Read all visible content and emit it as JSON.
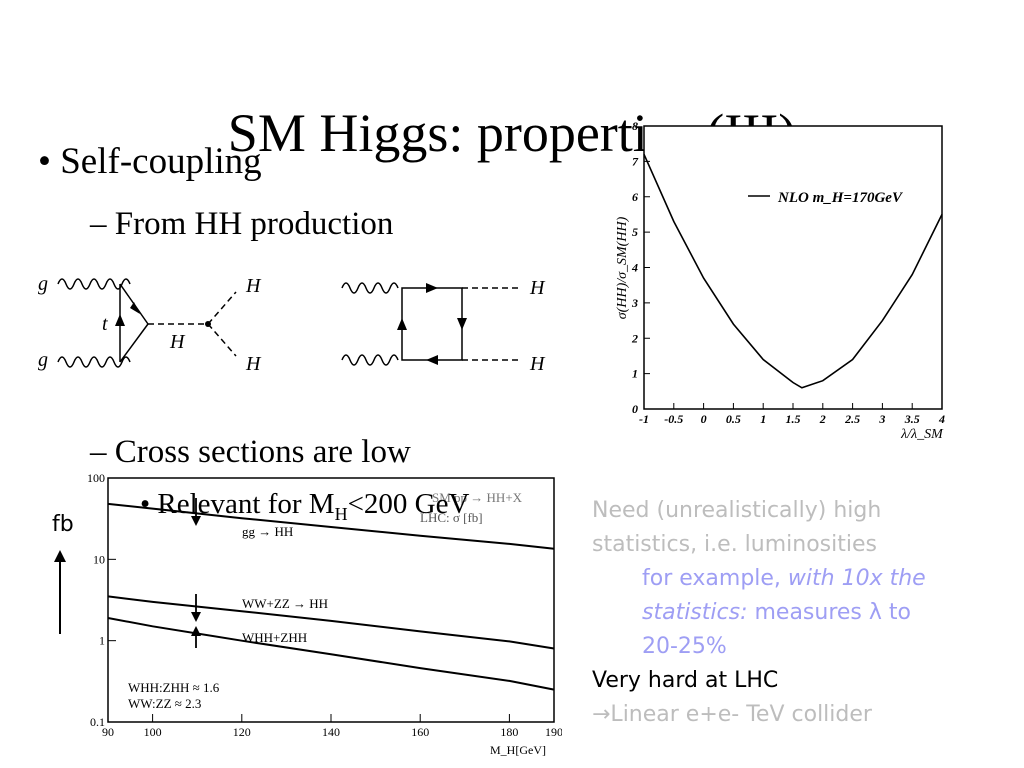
{
  "slide": {
    "title": "SM Higgs: properties (III)",
    "bullet1": "Self-coupling",
    "bullet2": "– From HH production",
    "bullet3": "– Cross sections are low",
    "bullet4_prefix": "Relevant for M",
    "bullet4_sub": "H",
    "bullet4_suffix": "<200 GeV",
    "fb_label": "fb"
  },
  "diagrams": {
    "g": "g",
    "t": "t",
    "H": "H"
  },
  "notes": {
    "line1": "Need (unrealistically) high",
    "line2": "statistics, i.e. luminosities",
    "line3_normal": "for example, ",
    "line3_italic": "with 10x the",
    "line4_italic": "statistics:",
    "line4_normal": " measures λ to",
    "line5": "20-25%",
    "line6": "Very hard at LHC",
    "line7": "→Linear e+e- TeV collider",
    "colors": {
      "grey": "#bdbdbd",
      "blue": "#9e9ef4",
      "black": "#000000"
    }
  },
  "chart_data": [
    {
      "type": "line",
      "ylabel": "σ(HH)/σ_SM(HH)",
      "xlabel": "λ/λ_SM",
      "legend": "NLO m_H=170GeV",
      "legend_placement": "top-right",
      "xlim": [
        -1,
        4
      ],
      "ylim": [
        0,
        8
      ],
      "xticks": [
        "-1",
        "-0.5",
        "0",
        "0.5",
        "1",
        "1.5",
        "2",
        "2.5",
        "3",
        "3.5",
        "4"
      ],
      "yticks": [
        "0",
        "1",
        "2",
        "3",
        "4",
        "5",
        "6",
        "7",
        "8"
      ],
      "series": [
        {
          "name": "NLO m_H=170GeV",
          "x": [
            -1,
            -0.5,
            0,
            0.5,
            1,
            1.5,
            1.65,
            2,
            2.5,
            3,
            3.5,
            4
          ],
          "y": [
            7.2,
            5.3,
            3.7,
            2.4,
            1.4,
            0.75,
            0.6,
            0.8,
            1.4,
            2.5,
            3.8,
            5.5
          ]
        }
      ]
    },
    {
      "type": "line",
      "y_scale": "log",
      "xlim": [
        90,
        190
      ],
      "ylim": [
        0.1,
        100
      ],
      "xlabel": "M_H[GeV]",
      "ylabel": "",
      "xticks": [
        "90",
        "100",
        "120",
        "140",
        "160",
        "180",
        "190"
      ],
      "yticks": [
        "0.1",
        "1",
        "10",
        "100"
      ],
      "header": "LHC: σ [fb]",
      "header_partial": "SM pp → HH+X",
      "annotations": [
        "WHH:ZHH ≈ 1.6",
        "WW:ZZ ≈ 2.3"
      ],
      "series": [
        {
          "name": "gg → HH",
          "x": [
            90,
            100,
            120,
            140,
            160,
            180,
            190
          ],
          "y": [
            48,
            42,
            32,
            25,
            19.5,
            15.5,
            13.5
          ]
        },
        {
          "name": "WW+ZZ → HH",
          "x": [
            90,
            100,
            120,
            140,
            160,
            180,
            190
          ],
          "y": [
            3.5,
            3.0,
            2.3,
            1.75,
            1.3,
            0.98,
            0.8
          ]
        },
        {
          "name": "WHH+ZHH",
          "x": [
            90,
            100,
            120,
            140,
            160,
            180,
            190
          ],
          "y": [
            1.9,
            1.5,
            1.0,
            0.68,
            0.46,
            0.32,
            0.25
          ]
        }
      ]
    }
  ]
}
